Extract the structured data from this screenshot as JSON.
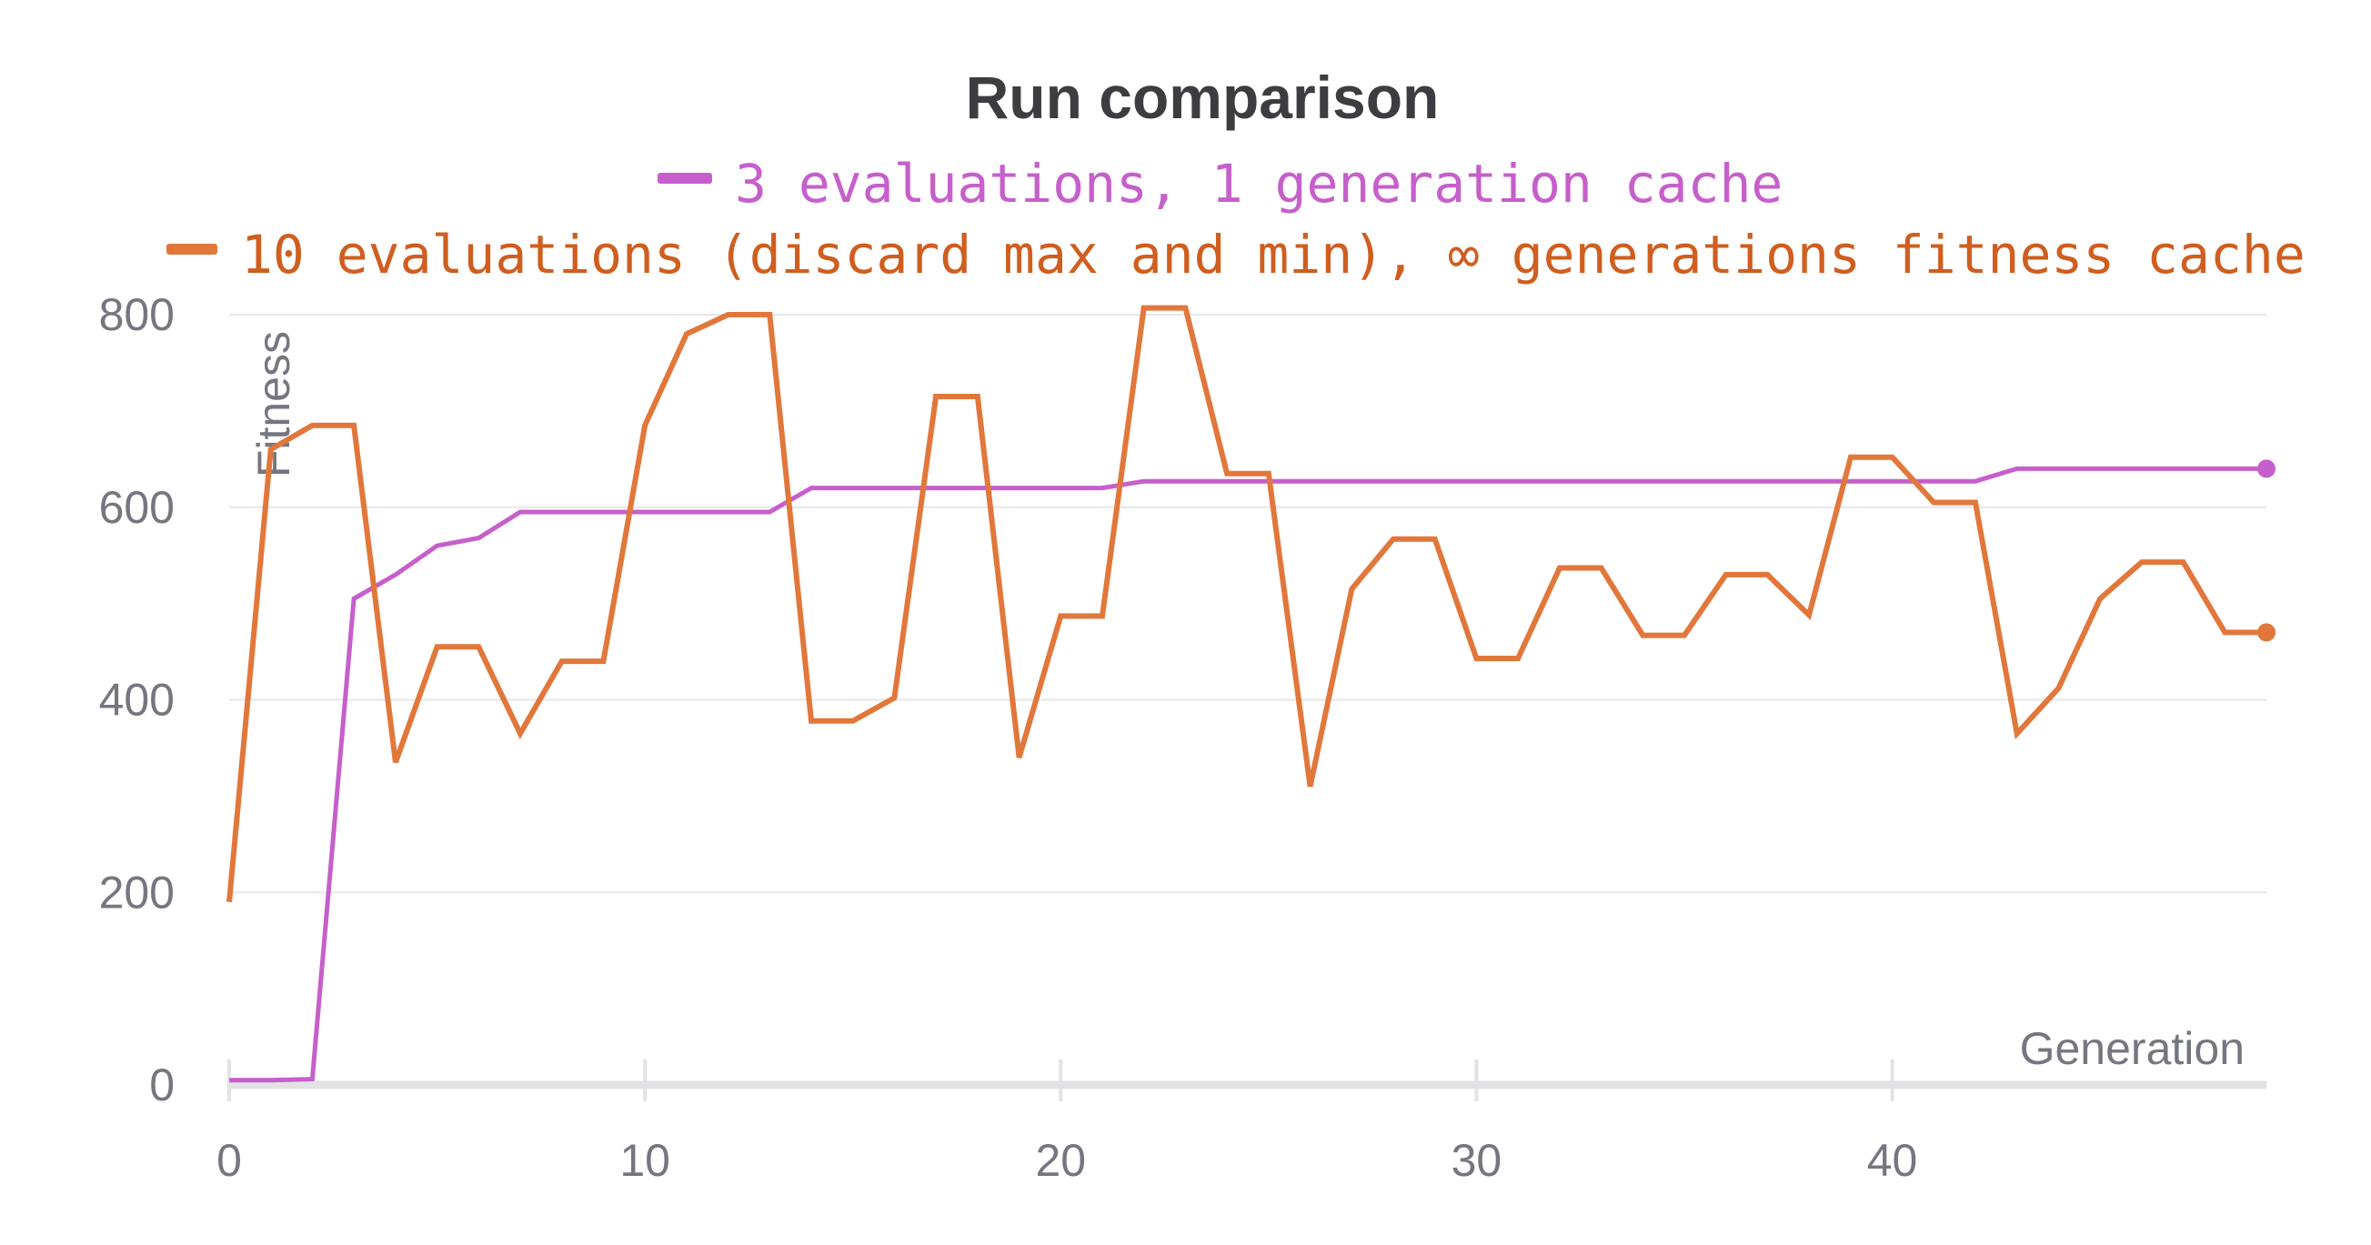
{
  "chart_data": {
    "type": "line",
    "title": "Run comparison",
    "xlabel": "Generation",
    "ylabel": "Fitness",
    "xlim": [
      0,
      49
    ],
    "ylim": [
      0,
      800
    ],
    "x_ticks": [
      0,
      10,
      20,
      30,
      40
    ],
    "y_ticks": [
      0,
      200,
      400,
      600,
      800
    ],
    "grid": true,
    "legend_position": "top-center",
    "series": [
      {
        "name": "3 evaluations, 1 generation cache",
        "color": "#c65fcb",
        "x": [
          0,
          1,
          2,
          3,
          4,
          5,
          6,
          7,
          8,
          9,
          10,
          11,
          12,
          13,
          14,
          15,
          16,
          17,
          18,
          19,
          20,
          21,
          22,
          23,
          24,
          25,
          26,
          27,
          28,
          29,
          30,
          31,
          32,
          33,
          34,
          35,
          36,
          37,
          38,
          39,
          40,
          41,
          42,
          43,
          44,
          45,
          46,
          47,
          48,
          49
        ],
        "values": [
          5,
          5,
          6,
          505,
          530,
          560,
          568,
          595,
          595,
          595,
          595,
          595,
          595,
          595,
          620,
          620,
          620,
          620,
          620,
          620,
          620,
          620,
          627,
          627,
          627,
          627,
          627,
          627,
          627,
          627,
          627,
          627,
          627,
          627,
          627,
          627,
          627,
          627,
          627,
          627,
          627,
          627,
          627,
          640,
          640,
          640,
          640,
          640,
          640,
          640
        ]
      },
      {
        "name": "10 evaluations (discard max and min), ∞ generations fitness cache",
        "color": "#e2773b",
        "label_color": "#cf5e1f",
        "x": [
          0,
          1,
          2,
          3,
          4,
          5,
          6,
          7,
          8,
          9,
          10,
          11,
          12,
          13,
          14,
          15,
          16,
          17,
          18,
          19,
          20,
          21,
          22,
          23,
          24,
          25,
          26,
          27,
          28,
          29,
          30,
          31,
          32,
          33,
          34,
          35,
          36,
          37,
          38,
          39,
          40,
          41,
          42,
          43,
          44,
          45,
          46,
          47,
          48,
          49
        ],
        "values": [
          190,
          660,
          685,
          685,
          335,
          455,
          455,
          365,
          440,
          440,
          685,
          780,
          800,
          800,
          378,
          378,
          402,
          715,
          715,
          340,
          487,
          487,
          807,
          807,
          635,
          635,
          310,
          515,
          567,
          567,
          443,
          443,
          537,
          537,
          467,
          467,
          530,
          530,
          488,
          652,
          652,
          605,
          605,
          365,
          412,
          505,
          543,
          543,
          470,
          470
        ]
      }
    ]
  }
}
